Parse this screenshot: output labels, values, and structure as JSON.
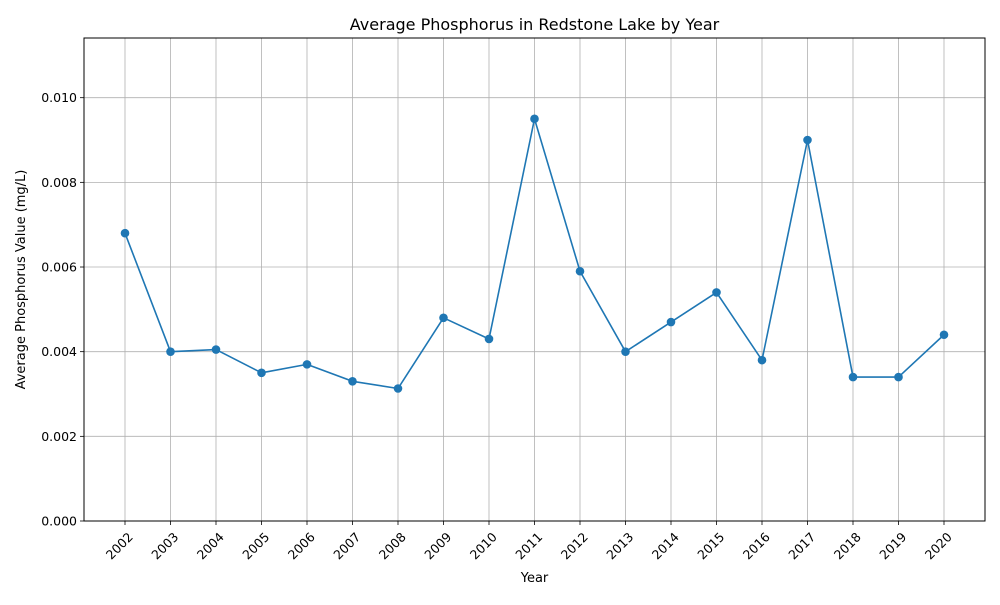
{
  "chart_data": {
    "type": "line",
    "title": "Average Phosphorus in Redstone Lake by Year",
    "xlabel": "Year",
    "ylabel": "Average Phosphorus Value (mg/L)",
    "categories": [
      "2002",
      "2003",
      "2004",
      "2005",
      "2006",
      "2007",
      "2008",
      "2009",
      "2010",
      "2011",
      "2012",
      "2013",
      "2014",
      "2015",
      "2016",
      "2017",
      "2018",
      "2019",
      "2020"
    ],
    "series": [
      {
        "values": [
          0.0068,
          0.004,
          0.00405,
          0.0035,
          0.0037,
          0.0033,
          0.00313,
          0.0048,
          0.0043,
          0.0095,
          0.0059,
          0.004,
          0.0047,
          0.0054,
          0.0038,
          0.009,
          0.0034,
          0.0034,
          0.0044
        ],
        "color": "#1f77b4",
        "marker": "circle"
      }
    ],
    "ylim": [
      0,
      0.01141
    ],
    "yticks": [
      0.0,
      0.002,
      0.004,
      0.006,
      0.008,
      0.01
    ],
    "ytick_labels": [
      "0.000",
      "0.002",
      "0.004",
      "0.006",
      "0.008",
      "0.010"
    ],
    "grid": true,
    "xtick_rotation_deg": 45,
    "grid_color": "#b0b0b0"
  }
}
